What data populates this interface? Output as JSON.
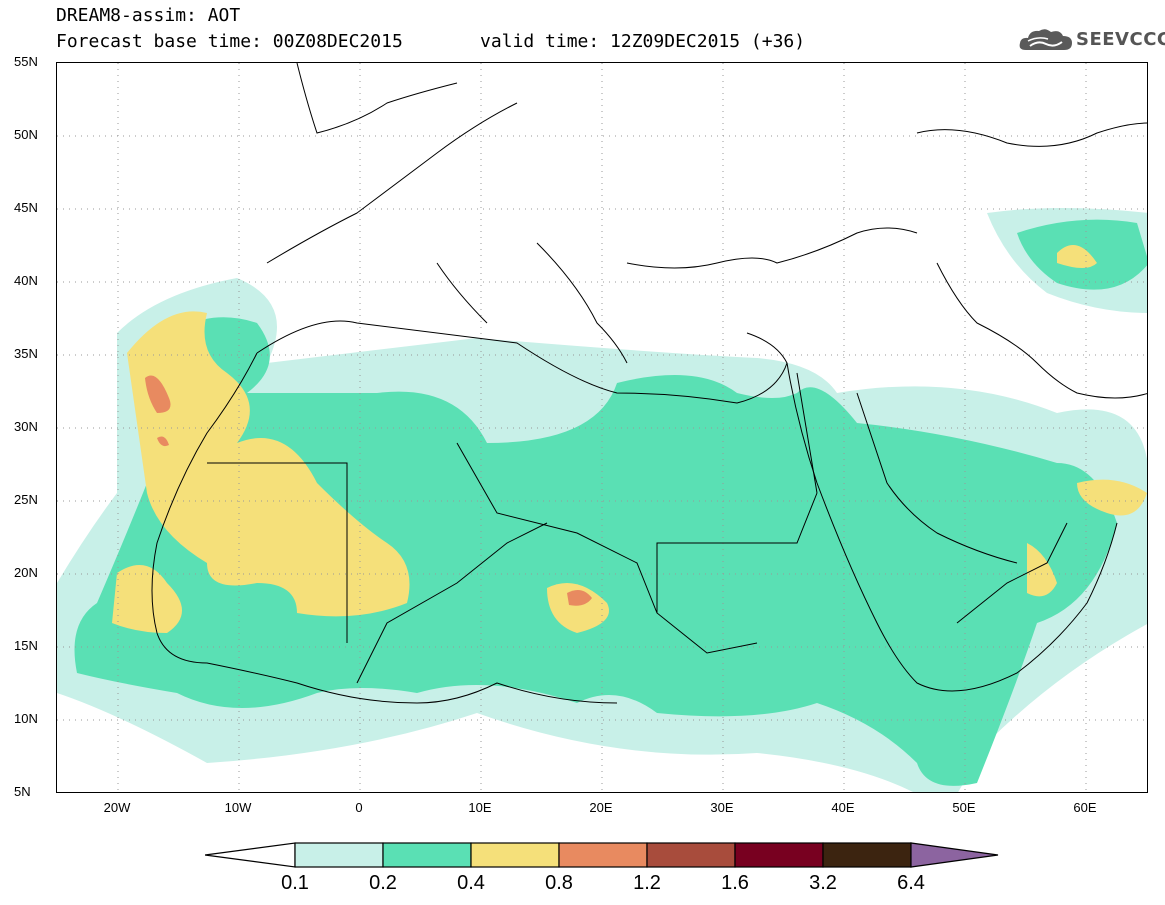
{
  "header": {
    "title_line1": "DREAM8-assim: AOT",
    "title_line2_left": "Forecast base time: 00Z08DEC2015",
    "title_line2_right": "valid time: 12Z09DEC2015 (+36)",
    "logo_text": "SEEVCCC",
    "logo_icon": "cloud-logo-icon"
  },
  "map": {
    "projection": "lat-lon",
    "lon_range": [
      -25,
      65
    ],
    "lat_range": [
      5,
      55
    ],
    "y_tick_labels": [
      "55N",
      "50N",
      "45N",
      "40N",
      "35N",
      "30N",
      "25N",
      "20N",
      "15N",
      "10N",
      "5N"
    ],
    "x_tick_labels": [
      "20W",
      "10W",
      "0",
      "10E",
      "20E",
      "30E",
      "40E",
      "50E",
      "60E"
    ],
    "gridlines": "dotted"
  },
  "legend": {
    "labels": [
      "0.1",
      "0.2",
      "0.4",
      "0.8",
      "1.2",
      "1.6",
      "3.2",
      "6.4"
    ],
    "colors": [
      "#ffffff",
      "#c8f0e8",
      "#5ae0b4",
      "#f5e07a",
      "#e88a60",
      "#a84c3c",
      "#780020",
      "#3c2410",
      "#8c64a0"
    ]
  }
}
